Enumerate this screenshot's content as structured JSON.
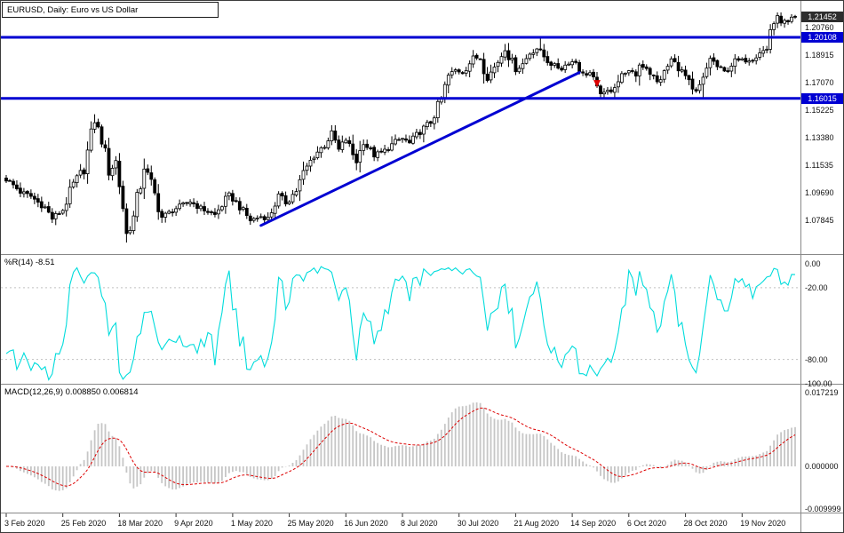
{
  "header": {
    "title": "EURUSD, Daily: Euro vs US Dollar"
  },
  "indicator_labels": {
    "wpr": "%R(14) -8.51",
    "macd": "MACD(12,26,9) 0.008850 0.006814"
  },
  "axes": {
    "price_labels": [
      {
        "text": "1.20760",
        "price": 1.2076
      },
      {
        "text": "1.18915",
        "price": 1.18915
      },
      {
        "text": "1.17070",
        "price": 1.1707
      },
      {
        "text": "1.15225",
        "price": 1.15225
      },
      {
        "text": "1.13380",
        "price": 1.1338
      },
      {
        "text": "1.11535",
        "price": 1.11535
      },
      {
        "text": "1.09690",
        "price": 1.0969
      },
      {
        "text": "1.07845",
        "price": 1.07845
      }
    ],
    "wpr_labels": [
      {
        "text": "0.00",
        "value": 0
      },
      {
        "text": "-20.00",
        "value": -20
      },
      {
        "text": "-80.00",
        "value": -80
      },
      {
        "text": "-100.00",
        "value": -100
      }
    ],
    "macd_labels": [
      {
        "text": "0.017219",
        "value": 0.017219
      },
      {
        "text": "0.000000",
        "value": 0
      },
      {
        "text": "-0.009999",
        "value": -0.009999
      }
    ],
    "date_labels": [
      {
        "text": "3 Feb 2020",
        "day": 0
      },
      {
        "text": "25 Feb 2020",
        "day": 16
      },
      {
        "text": "18 Mar 2020",
        "day": 32
      },
      {
        "text": "9 Apr 2020",
        "day": 48
      },
      {
        "text": "1 May 2020",
        "day": 64
      },
      {
        "text": "25 May 2020",
        "day": 80
      },
      {
        "text": "16 Jun 2020",
        "day": 96
      },
      {
        "text": "8 Jul 2020",
        "day": 112
      },
      {
        "text": "30 Jul 2020",
        "day": 128
      },
      {
        "text": "21 Aug 2020",
        "day": 144
      },
      {
        "text": "14 Sep 2020",
        "day": 160
      },
      {
        "text": "6 Oct 2020",
        "day": 176
      },
      {
        "text": "28 Oct 2020",
        "day": 192
      },
      {
        "text": "19 Nov 2020",
        "day": 208
      }
    ]
  },
  "badges": {
    "current": {
      "text": "1.21452",
      "price": 1.21452,
      "bg": "#2d2d2d"
    },
    "lines": [
      {
        "text": "1.20108",
        "price": 1.20108,
        "bg": "#0000d2"
      },
      {
        "text": "1.16015",
        "price": 1.16015,
        "bg": "#0000d2"
      }
    ]
  },
  "colors": {
    "candle_up_fill": "#ffffff",
    "candle_down_fill": "#000000",
    "candle_border": "#000000",
    "object_blue": "#0000d2",
    "wpr_line": "#00dcdc",
    "wpr_level_dash": "#c0c0c0",
    "macd_histogram": "#c6c6c6",
    "macd_signal": "#dd0000",
    "separator": "#888888",
    "tick": "#333333"
  },
  "chart_data": {
    "type": "candlestick",
    "symbol": "EURUSD",
    "timeframe": "Daily",
    "description": "Euro vs US Dollar",
    "num_bars": 224,
    "last_price": 1.21452,
    "price_axis_ticks": [
      1.2076,
      1.18915,
      1.1707,
      1.15225,
      1.1338,
      1.11535,
      1.0969,
      1.07845
    ],
    "grid_step": 0.01845,
    "close_anchors": [
      [
        0,
        1.1058
      ],
      [
        2,
        1.102
      ],
      [
        4,
        1.0975
      ],
      [
        7,
        1.0945
      ],
      [
        9,
        1.0905
      ],
      [
        11,
        1.087
      ],
      [
        13,
        1.0795
      ],
      [
        16,
        1.0855
      ],
      [
        19,
        1.1026
      ],
      [
        22,
        1.1135
      ],
      [
        25,
        1.145
      ],
      [
        27,
        1.133
      ],
      [
        29,
        1.1105
      ],
      [
        31,
        1.118
      ],
      [
        33,
        1.088
      ],
      [
        34,
        1.069
      ],
      [
        36,
        1.08
      ],
      [
        39,
        1.114
      ],
      [
        41,
        1.103
      ],
      [
        44,
        1.0805
      ],
      [
        48,
        1.0865
      ],
      [
        52,
        1.091
      ],
      [
        55,
        1.0865
      ],
      [
        59,
        1.082
      ],
      [
        63,
        1.0955
      ],
      [
        65,
        1.0905
      ],
      [
        69,
        1.0785
      ],
      [
        72,
        1.081
      ],
      [
        74,
        1.0795
      ],
      [
        77,
        1.095
      ],
      [
        79,
        1.09
      ],
      [
        82,
        1.0985
      ],
      [
        84,
        1.11
      ],
      [
        87,
        1.122
      ],
      [
        90,
        1.129
      ],
      [
        92,
        1.137
      ],
      [
        94,
        1.1255
      ],
      [
        96,
        1.1325
      ],
      [
        99,
        1.1177
      ],
      [
        101,
        1.131
      ],
      [
        104,
        1.1219
      ],
      [
        107,
        1.1251
      ],
      [
        110,
        1.131
      ],
      [
        112,
        1.1332
      ],
      [
        114,
        1.13
      ],
      [
        117,
        1.138
      ],
      [
        120,
        1.1445
      ],
      [
        123,
        1.1596
      ],
      [
        125,
        1.175
      ],
      [
        127,
        1.179
      ],
      [
        129,
        1.1778
      ],
      [
        132,
        1.187
      ],
      [
        134,
        1.1877
      ],
      [
        136,
        1.174
      ],
      [
        138,
        1.181
      ],
      [
        141,
        1.1932
      ],
      [
        144,
        1.1796
      ],
      [
        146,
        1.1832
      ],
      [
        148,
        1.1905
      ],
      [
        150,
        1.1936
      ],
      [
        151,
        1.191
      ],
      [
        153,
        1.1853
      ],
      [
        155,
        1.1817
      ],
      [
        157,
        1.1801
      ],
      [
        159,
        1.1846
      ],
      [
        161,
        1.1847
      ],
      [
        163,
        1.176
      ],
      [
        165,
        1.1772
      ],
      [
        167,
        1.166
      ],
      [
        169,
        1.1631
      ],
      [
        171,
        1.1662
      ],
      [
        173,
        1.1717
      ],
      [
        175,
        1.1784
      ],
      [
        178,
        1.176
      ],
      [
        179,
        1.1826
      ],
      [
        181,
        1.181
      ],
      [
        184,
        1.1709
      ],
      [
        186,
        1.177
      ],
      [
        188,
        1.1862
      ],
      [
        190,
        1.181
      ],
      [
        192,
        1.1746
      ],
      [
        194,
        1.1647
      ],
      [
        195,
        1.164
      ],
      [
        197,
        1.172
      ],
      [
        199,
        1.1874
      ],
      [
        201,
        1.1813
      ],
      [
        203,
        1.1779
      ],
      [
        206,
        1.1852
      ],
      [
        209,
        1.1857
      ],
      [
        211,
        1.187
      ],
      [
        213,
        1.1915
      ],
      [
        215,
        1.1926
      ],
      [
        216,
        1.2071
      ],
      [
        218,
        1.2143
      ],
      [
        219,
        1.2121
      ],
      [
        221,
        1.2106
      ],
      [
        223,
        1.21452
      ]
    ],
    "special_highs": [
      [
        25,
        1.1495
      ],
      [
        92,
        1.1422
      ],
      [
        141,
        1.1966
      ],
      [
        151,
        1.2011
      ],
      [
        218,
        1.2177
      ],
      [
        223,
        1.216
      ]
    ],
    "special_lows": [
      [
        13,
        1.0778
      ],
      [
        34,
        1.0636
      ],
      [
        69,
        1.0767
      ],
      [
        74,
        1.0775
      ],
      [
        169,
        1.1612
      ],
      [
        197,
        1.1603
      ]
    ],
    "overlays": {
      "hlines": [
        {
          "price": 1.20108
        },
        {
          "price": 1.16015
        }
      ],
      "trendline": {
        "from_day": 72,
        "from_price": 1.075,
        "to_day": 162,
        "to_price": 1.1775
      },
      "sell_marker": {
        "day": 167,
        "price": 1.17
      }
    },
    "indicators": [
      {
        "type": "williams_percent_r",
        "period": 14,
        "last_value": -8.51,
        "levels": [
          -20,
          -80
        ],
        "range": [
          0,
          -100
        ]
      },
      {
        "type": "macd",
        "fast": 12,
        "slow": 26,
        "signal": 9,
        "last_macd": 0.00885,
        "last_signal": 0.006814,
        "axis_max": 0.017219,
        "axis_min": -0.009999
      }
    ],
    "x_date_ticks": [
      "3 Feb 2020",
      "25 Feb 2020",
      "18 Mar 2020",
      "9 Apr 2020",
      "1 May 2020",
      "25 May 2020",
      "16 Jun 2020",
      "8 Jul 2020",
      "30 Jul 2020",
      "21 Aug 2020",
      "14 Sep 2020",
      "6 Oct 2020",
      "28 Oct 2020",
      "19 Nov 2020"
    ]
  }
}
